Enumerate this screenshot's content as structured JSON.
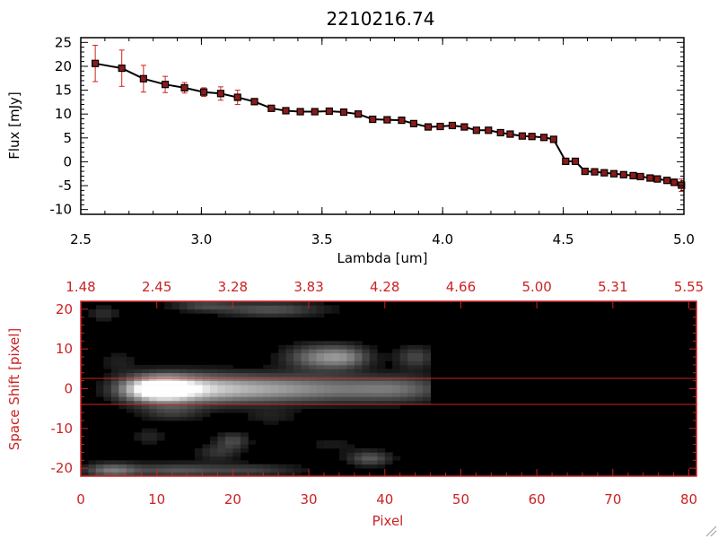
{
  "colors": {
    "axis_black": "#000000",
    "axis_red": "#cc2222",
    "marker_red": "#8b1a1a",
    "errorbar_red": "#cc2222",
    "image_bg": "#000000",
    "slit_line": "#cc2222",
    "page_bg": "#ffffff"
  },
  "chart_data": [
    {
      "type": "line",
      "title": "2210216.74",
      "xlabel": "Lambda [um]",
      "ylabel": "Flux [mJy]",
      "xlim": [
        2.5,
        5.0
      ],
      "ylim": [
        -11,
        26
      ],
      "xticks": [
        2.5,
        3.0,
        3.5,
        4.0,
        4.5,
        5.0
      ],
      "xtick_labels": [
        "2.5",
        "3.0",
        "3.5",
        "4.0",
        "4.5",
        "5.0"
      ],
      "yticks": [
        -10,
        -5,
        0,
        5,
        10,
        15,
        20,
        25
      ],
      "ytick_labels": [
        "-10",
        "-5",
        "0",
        "5",
        "10",
        "15",
        "20",
        "25"
      ],
      "series": [
        {
          "x": [
            2.56,
            2.67,
            2.76,
            2.85,
            2.93,
            3.01,
            3.08,
            3.15,
            3.22,
            3.29,
            3.35,
            3.41,
            3.47,
            3.53,
            3.59,
            3.65,
            3.71,
            3.77,
            3.83,
            3.88,
            3.94,
            3.99,
            4.04,
            4.09,
            4.14,
            4.19,
            4.24,
            4.28,
            4.33,
            4.37,
            4.42,
            4.46,
            4.51,
            4.55,
            4.59,
            4.63,
            4.67,
            4.71,
            4.75,
            4.79,
            4.82,
            4.86,
            4.89,
            4.93,
            4.96,
            4.99
          ],
          "y": [
            20.6,
            19.6,
            17.4,
            16.2,
            15.5,
            14.6,
            14.3,
            13.5,
            12.6,
            11.2,
            10.7,
            10.5,
            10.5,
            10.6,
            10.4,
            10.0,
            8.9,
            8.8,
            8.7,
            8.0,
            7.3,
            7.4,
            7.6,
            7.3,
            6.6,
            6.6,
            6.1,
            5.8,
            5.4,
            5.3,
            5.1,
            4.7,
            0.1,
            0.1,
            -2.0,
            -2.1,
            -2.3,
            -2.5,
            -2.7,
            -2.9,
            -3.1,
            -3.4,
            -3.6,
            -3.9,
            -4.3,
            -4.9
          ],
          "yerr": [
            3.8,
            3.8,
            2.8,
            1.7,
            1.1,
            0.9,
            1.4,
            1.5,
            0.5,
            0.4,
            0.3,
            0.3,
            0.3,
            0.3,
            0.3,
            0.3,
            0.3,
            0.3,
            0.3,
            0.3,
            0.3,
            0.3,
            0.3,
            0.3,
            0.3,
            0.3,
            0.3,
            0.3,
            0.3,
            0.3,
            0.3,
            0.3,
            0.3,
            0.3,
            0.3,
            0.3,
            0.3,
            0.3,
            0.3,
            0.3,
            0.4,
            0.4,
            0.5,
            0.6,
            0.7,
            1.3
          ]
        }
      ],
      "grid": false,
      "marker": "square",
      "error_bars": true
    },
    {
      "type": "heatmap",
      "xlabel": "Pixel",
      "ylabel": "Space Shift [pixel]",
      "xlim": [
        0,
        81
      ],
      "ylim": [
        -22,
        22
      ],
      "xticks": [
        0,
        10,
        20,
        30,
        40,
        50,
        60,
        70,
        80
      ],
      "xtick_labels": [
        "0",
        "10",
        "20",
        "30",
        "40",
        "50",
        "60",
        "70",
        "80"
      ],
      "yticks": [
        -20,
        -10,
        0,
        10,
        20
      ],
      "ytick_labels": [
        "-20",
        "-10",
        "0",
        "10",
        "20"
      ],
      "top_axis_tick_labels": [
        "1.48",
        "2.45",
        "3.28",
        "3.83",
        "4.28",
        "4.66",
        "5.00",
        "5.31",
        "5.55"
      ],
      "extraction_window": [
        -3,
        3
      ],
      "colormap": "grayscale",
      "data_coverage_x": [
        0,
        46
      ],
      "blobs": [
        {
          "x": 10,
          "y": 0,
          "wx": 3.2,
          "wy": 2.2,
          "v": 1.0
        },
        {
          "x": 14,
          "y": 0,
          "wx": 5.0,
          "wy": 2.6,
          "v": 0.55
        },
        {
          "x": 22,
          "y": 0,
          "wx": 6.0,
          "wy": 2.5,
          "v": 0.42
        },
        {
          "x": 32,
          "y": 0,
          "wx": 7.0,
          "wy": 2.4,
          "v": 0.38
        },
        {
          "x": 42,
          "y": 0,
          "wx": 4.5,
          "wy": 2.3,
          "v": 0.32
        },
        {
          "x": 31,
          "y": 8,
          "wx": 3.0,
          "wy": 2.2,
          "v": 0.42
        },
        {
          "x": 35,
          "y": 8,
          "wx": 2.4,
          "wy": 2.0,
          "v": 0.38
        },
        {
          "x": 44,
          "y": 8,
          "wx": 1.8,
          "wy": 2.0,
          "v": 0.28
        },
        {
          "x": 25,
          "y": 20,
          "wx": 5.0,
          "wy": 1.4,
          "v": 0.32
        },
        {
          "x": 16,
          "y": 21,
          "wx": 3.0,
          "wy": 1.0,
          "v": 0.25
        },
        {
          "x": 3,
          "y": 19,
          "wx": 1.5,
          "wy": 1.5,
          "v": 0.18
        },
        {
          "x": 4,
          "y": -20.5,
          "wx": 2.5,
          "wy": 1.3,
          "v": 0.45
        },
        {
          "x": 12,
          "y": -20.5,
          "wx": 4.0,
          "wy": 1.3,
          "v": 0.3
        },
        {
          "x": 22,
          "y": -20.5,
          "wx": 5.0,
          "wy": 1.2,
          "v": 0.25
        },
        {
          "x": 38,
          "y": -17.5,
          "wx": 2.0,
          "wy": 1.3,
          "v": 0.35
        },
        {
          "x": 12,
          "y": -6,
          "wx": 3.0,
          "wy": 1.5,
          "v": 0.2
        },
        {
          "x": 20,
          "y": -13,
          "wx": 1.5,
          "wy": 1.5,
          "v": 0.28
        },
        {
          "x": 18,
          "y": -16,
          "wx": 2.0,
          "wy": 1.5,
          "v": 0.2
        },
        {
          "x": 9,
          "y": -12,
          "wx": 1.5,
          "wy": 1.5,
          "v": 0.15
        },
        {
          "x": 5,
          "y": 7,
          "wx": 1.8,
          "wy": 2.0,
          "v": 0.12
        },
        {
          "x": 25,
          "y": -7,
          "wx": 2.5,
          "wy": 1.5,
          "v": 0.12
        },
        {
          "x": 33,
          "y": -14,
          "wx": 3.0,
          "wy": 1.5,
          "v": 0.1
        }
      ]
    }
  ]
}
